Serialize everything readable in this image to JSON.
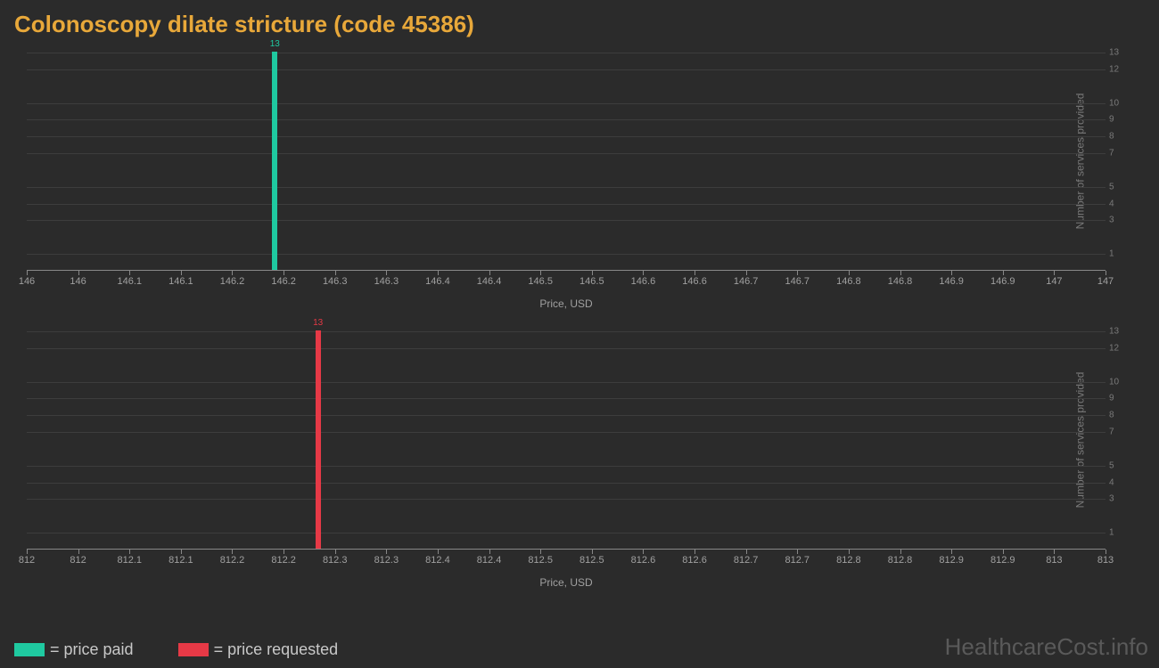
{
  "title": "Colonoscopy dilate stricture (code 45386)",
  "colors": {
    "background": "#2b2b2b",
    "title": "#e8a83a",
    "grid": "#3d3d3d",
    "axis": "#888888",
    "tick_text": "#a0a0a0",
    "y_tick_text": "#7a7a7a",
    "series_paid": "#1fc9a0",
    "series_requested": "#e63946",
    "legend_text": "#c8c8c8",
    "watermark": "#5a5a5a"
  },
  "y_axis": {
    "label": "Number of services provided",
    "min": 0,
    "max": 13,
    "ticks": [
      1,
      3,
      4,
      5,
      7,
      8,
      9,
      10,
      12,
      13
    ]
  },
  "x_axis_label": "Price, USD",
  "charts": [
    {
      "series": "paid",
      "bar_color": "#1fc9a0",
      "x_min": 146.0,
      "x_max": 147.0,
      "x_ticks": [
        "146",
        "146",
        "146.1",
        "146.1",
        "146.2",
        "146.2",
        "146.3",
        "146.3",
        "146.4",
        "146.4",
        "146.5",
        "146.5",
        "146.6",
        "146.6",
        "146.7",
        "146.7",
        "146.8",
        "146.8",
        "146.9",
        "146.9",
        "147",
        "147"
      ],
      "bar": {
        "x": 146.23,
        "value": 13,
        "label": "13"
      }
    },
    {
      "series": "requested",
      "bar_color": "#e63946",
      "x_min": 812.0,
      "x_max": 813.0,
      "x_ticks": [
        "812",
        "812",
        "812.1",
        "812.1",
        "812.2",
        "812.2",
        "812.3",
        "812.3",
        "812.4",
        "812.4",
        "812.5",
        "812.5",
        "812.6",
        "812.6",
        "812.7",
        "812.7",
        "812.8",
        "812.8",
        "812.9",
        "812.9",
        "813",
        "813"
      ],
      "bar": {
        "x": 812.27,
        "value": 13,
        "label": "13"
      }
    }
  ],
  "legend": {
    "paid": "= price paid",
    "requested": "= price requested"
  },
  "watermark": "HealthcareCost.info"
}
